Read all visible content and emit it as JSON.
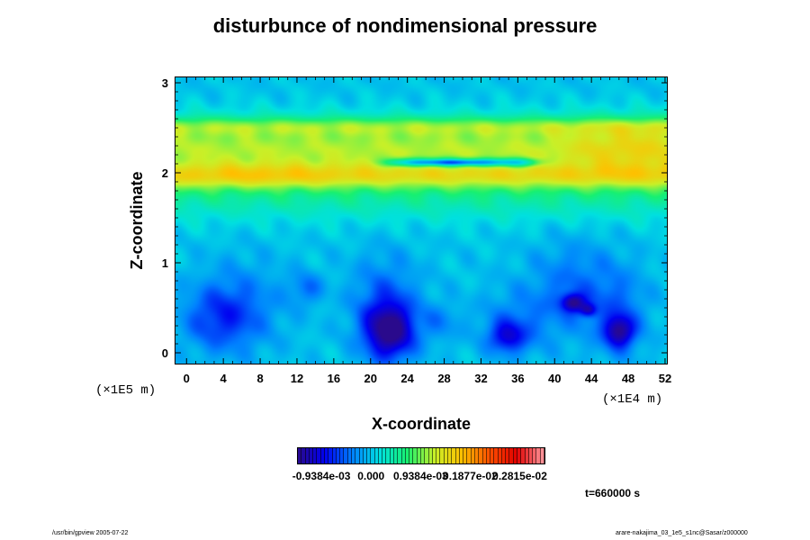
{
  "chart_data": {
    "type": "heatmap",
    "title": "disturbunce of nondimensional pressure",
    "xlabel": "X-coordinate",
    "ylabel": "Z-coordinate",
    "x_scale_label": "(×1E4 m)",
    "z_scale_label": "(×1E5 m)",
    "xlim": [
      -1.2,
      52.2
    ],
    "ylim": [
      -0.12,
      3.06
    ],
    "x_ticks": [
      0,
      4,
      8,
      12,
      16,
      20,
      24,
      28,
      32,
      36,
      40,
      44,
      48,
      52
    ],
    "x_tick_labels": [
      "0",
      "4",
      "8",
      "12",
      "16",
      "20",
      "24",
      "28",
      "32",
      "36",
      "40",
      "44",
      "48",
      "52"
    ],
    "y_ticks": [
      0,
      1,
      2,
      3
    ],
    "y_tick_labels": [
      "0",
      "1",
      "2",
      "3"
    ],
    "colorbar": {
      "min": -0.0014,
      "max": 0.0033,
      "labels": [
        "-0.9384e-03",
        "0.000",
        "0.9384e-03",
        "0.1877e-02",
        "0.2815e-02"
      ],
      "label_values": [
        -0.0009384,
        0.0,
        0.0009384,
        0.001877,
        0.002815
      ],
      "colors": [
        "#2a0a8c",
        "#0000f0",
        "#0080ff",
        "#00e0e0",
        "#18f070",
        "#c8f028",
        "#ffc000",
        "#ff5000",
        "#e00000",
        "#ff9aa0"
      ]
    },
    "background_value": 0.0,
    "bands": [
      {
        "z_center": 2.28,
        "z_width": 0.22,
        "amplitude": 0.0011,
        "x_mod": [
          {
            "x": 48,
            "sx": 5,
            "a": 0.0004
          }
        ]
      },
      {
        "z_center": 2.52,
        "z_width": 0.07,
        "amplitude": 0.0005
      },
      {
        "z_center": 1.97,
        "z_width": 0.1,
        "amplitude": 0.00075,
        "x_mod": [
          {
            "x": 8,
            "sx": 6,
            "a": 0.0002
          }
        ]
      },
      {
        "z_center": 1.78,
        "z_width": 0.22,
        "amplitude": 0.00045
      },
      {
        "z_center": 2.12,
        "z_width": 0.035,
        "amplitude": -0.0011,
        "x_range": [
          22,
          38
        ]
      }
    ],
    "blobs": [
      {
        "x": 22,
        "z": 0.24,
        "sx": 1.9,
        "sz": 0.22,
        "amp": -0.00135
      },
      {
        "x": 21.5,
        "z": 0.6,
        "sx": 2.6,
        "sz": 0.35,
        "amp": -0.00045
      },
      {
        "x": 47,
        "z": 0.24,
        "sx": 1.1,
        "sz": 0.12,
        "amp": -0.0011
      },
      {
        "x": 47,
        "z": 0.45,
        "sx": 2.2,
        "sz": 0.35,
        "amp": -0.0004
      },
      {
        "x": 42,
        "z": 0.56,
        "sx": 0.9,
        "sz": 0.07,
        "amp": -0.0011
      },
      {
        "x": 43.6,
        "z": 0.48,
        "sx": 0.6,
        "sz": 0.05,
        "amp": -0.0008
      },
      {
        "x": 42,
        "z": 0.75,
        "sx": 3.2,
        "sz": 0.35,
        "amp": -0.0004
      },
      {
        "x": 34.8,
        "z": 0.18,
        "sx": 1.4,
        "sz": 0.12,
        "amp": -0.0008
      },
      {
        "x": 36,
        "z": 0.35,
        "sx": 3.0,
        "sz": 0.25,
        "amp": -0.00035
      },
      {
        "x": 3.5,
        "z": 0.38,
        "sx": 2.8,
        "sz": 0.25,
        "amp": -0.00055
      },
      {
        "x": 6,
        "z": 0.55,
        "sx": 3.5,
        "sz": 0.35,
        "amp": -0.0003
      },
      {
        "x": 13,
        "z": 0.72,
        "sx": 1.3,
        "sz": 0.12,
        "amp": -0.0004
      },
      {
        "x": 27.5,
        "z": 0.35,
        "sx": 1.5,
        "sz": 0.15,
        "amp": -0.0003
      },
      {
        "x": 29,
        "z": 2.12,
        "sx": 3,
        "sz": 0.02,
        "amp": -0.0006
      }
    ],
    "time_label": "t=660000 s"
  },
  "footer": {
    "left": "/usr/bin/gpview 2005-07-22",
    "right": "arare-nakajima_03_1e5_s1nc@Sasar/z000000"
  },
  "colors": {
    "background": "#ffffff",
    "frame": "#000000"
  }
}
